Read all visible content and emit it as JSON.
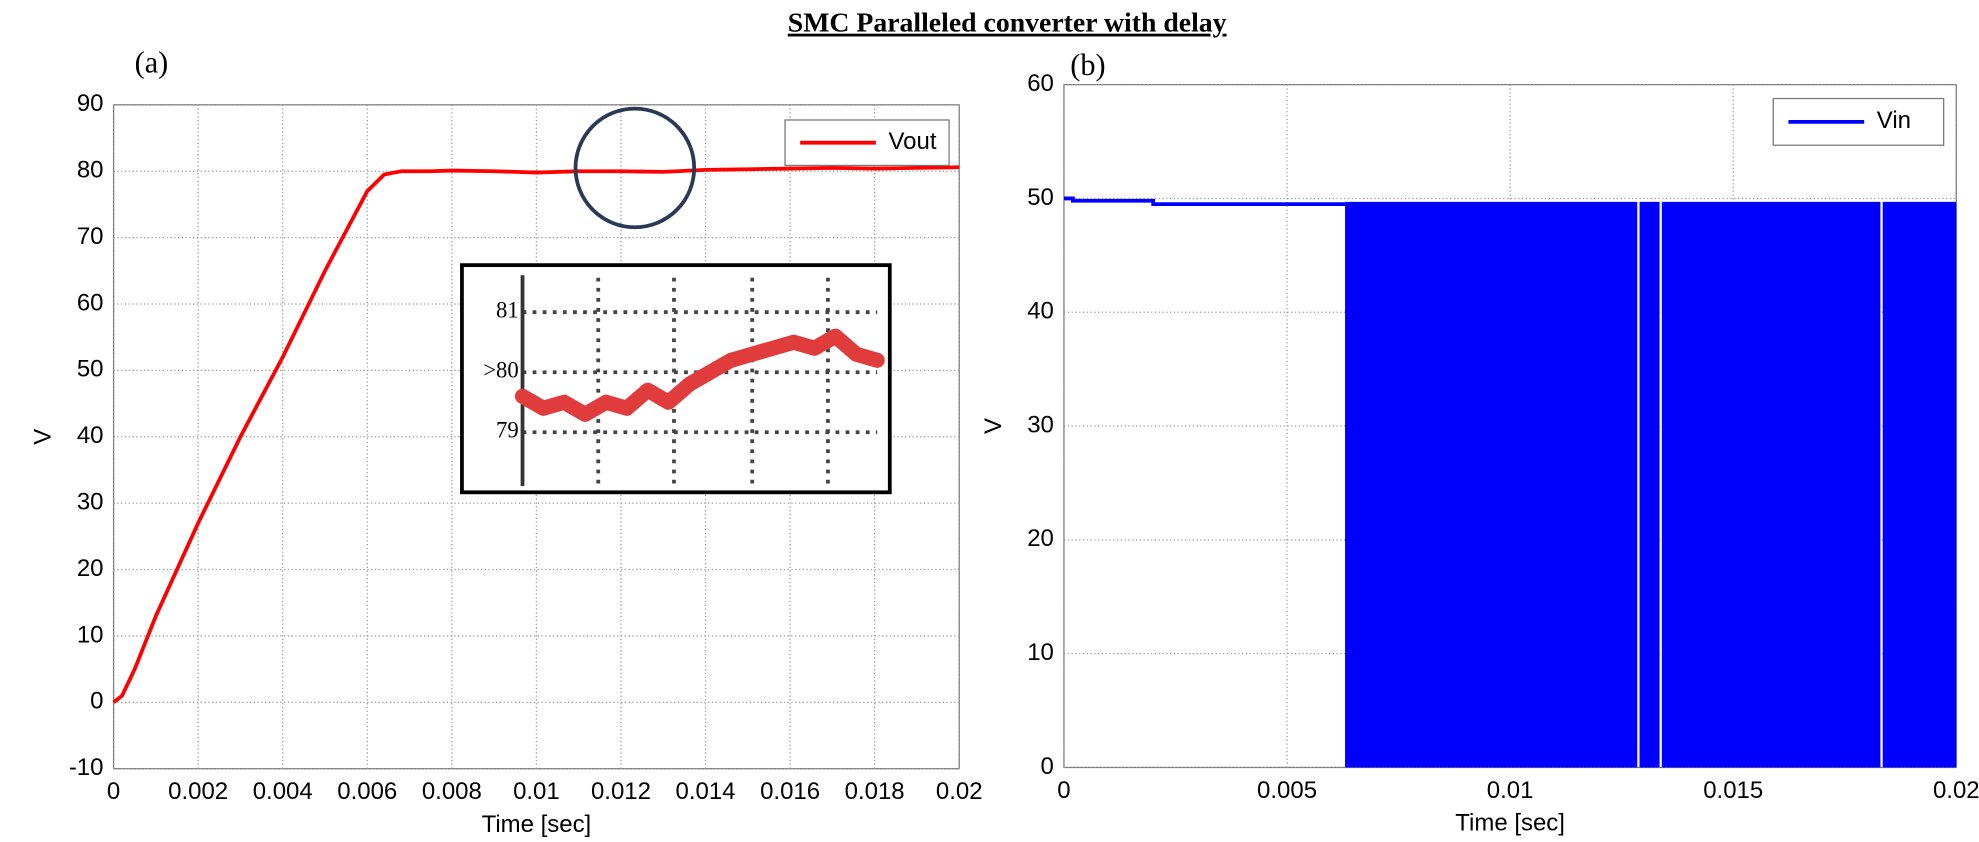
{
  "title": "SMC Paralleled converter with delay",
  "chart_data": [
    {
      "type": "line",
      "panel_label": "(a)",
      "x_label": "Time [sec]",
      "y_label": "V",
      "xlim": [
        0,
        0.02
      ],
      "xticks": [
        0,
        0.002,
        0.004,
        0.006,
        0.008,
        0.01,
        0.012,
        0.014,
        0.016,
        0.018,
        0.02
      ],
      "ylim": [
        -10,
        90
      ],
      "yticks": [
        -10,
        0,
        10,
        20,
        30,
        40,
        50,
        60,
        70,
        80,
        90
      ],
      "grid": true,
      "legend": "upper right",
      "series": [
        {
          "name": "Vout",
          "color": "#ff0000",
          "x": [
            0,
            0.0002,
            0.0005,
            0.001,
            0.002,
            0.003,
            0.004,
            0.005,
            0.006,
            0.0064,
            0.0068,
            0.0075,
            0.008,
            0.009,
            0.01,
            0.011,
            0.012,
            0.013,
            0.014,
            0.015,
            0.016,
            0.017,
            0.018,
            0.019,
            0.02
          ],
          "values": [
            0,
            1,
            5,
            13,
            27,
            40,
            52,
            65,
            77,
            79.5,
            80,
            80,
            80.1,
            80,
            79.8,
            80,
            80,
            79.9,
            80.2,
            80.3,
            80.4,
            80.5,
            80.4,
            80.5,
            80.6
          ]
        }
      ],
      "inset": {
        "type": "line",
        "ylim": [
          78,
          81.7
        ],
        "yticks": [
          79,
          {
            "value": 80,
            "label": ">80"
          },
          81
        ],
        "series": [
          {
            "color": "#e03c3c",
            "values": [
              79.6,
              79.4,
              79.5,
              79.3,
              79.5,
              79.4,
              79.7,
              79.5,
              79.8,
              80.0,
              80.2,
              80.3,
              80.4,
              80.5,
              80.4,
              80.6,
              80.3,
              80.2
            ]
          }
        ]
      }
    },
    {
      "type": "line",
      "panel_label": "(b)",
      "x_label": "Time [sec]",
      "y_label": "V",
      "xlim": [
        0,
        0.02
      ],
      "xticks": [
        0,
        0.005,
        0.01,
        0.015,
        0.02
      ],
      "ylim": [
        0,
        60
      ],
      "yticks": [
        0,
        10,
        20,
        30,
        40,
        50,
        60
      ],
      "grid": true,
      "legend": "upper right",
      "series": [
        {
          "name": "Vin",
          "color": "#0000ff",
          "x": [
            0,
            0.0002,
            0.0002,
            0.002,
            0.002,
            0.0063
          ],
          "values": [
            50,
            50,
            49.8,
            49.8,
            49.5,
            49.5
          ],
          "band_x": [
            [
              0.0063,
              0.01285
            ],
            [
              0.0129,
              0.01335
            ],
            [
              0.0134,
              0.0183
            ],
            [
              0.01835,
              0.02
            ]
          ],
          "band_range": [
            0,
            49.7
          ]
        }
      ]
    }
  ]
}
